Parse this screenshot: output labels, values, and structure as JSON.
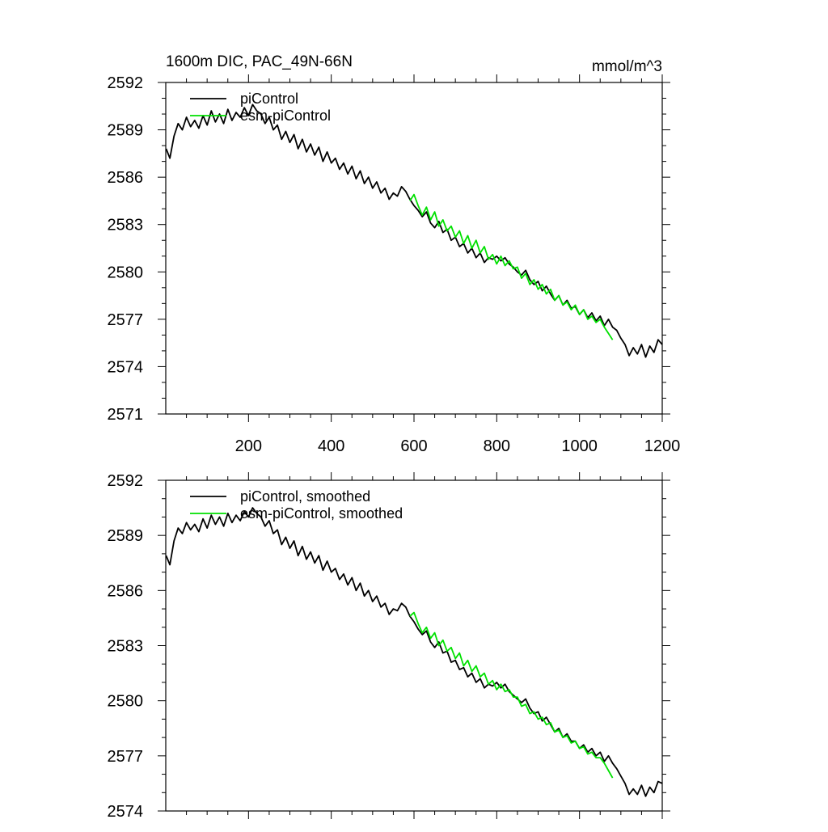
{
  "chart_data": [
    {
      "type": "line",
      "title": "1600m DIC, PAC_49N-66N",
      "units": "mmol/m^3",
      "xlim": [
        0,
        1200
      ],
      "ylim": [
        2571,
        2592
      ],
      "xticks": [
        200,
        400,
        600,
        800,
        1000,
        1200
      ],
      "xtick_labels": [
        "200",
        "400",
        "600",
        "800",
        "1000",
        "1200"
      ],
      "yticks": [
        2571,
        2574,
        2577,
        2580,
        2583,
        2586,
        2589,
        2592
      ],
      "ytick_labels": [
        "2571",
        "2574",
        "2577",
        "2580",
        "2583",
        "2586",
        "2589",
        "2592"
      ],
      "grid": false,
      "legend_position": "top-left",
      "series": [
        {
          "name": "piControl",
          "color": "#000000",
          "x": [
            1,
            10,
            20,
            30,
            40,
            50,
            60,
            70,
            80,
            90,
            100,
            110,
            120,
            130,
            140,
            150,
            160,
            170,
            180,
            190,
            200,
            210,
            220,
            230,
            240,
            250,
            260,
            270,
            280,
            290,
            300,
            310,
            320,
            330,
            340,
            350,
            360,
            370,
            380,
            390,
            400,
            410,
            420,
            430,
            440,
            450,
            460,
            470,
            480,
            490,
            500,
            510,
            520,
            530,
            540,
            550,
            560,
            570,
            580,
            590,
            600,
            610,
            620,
            630,
            640,
            650,
            660,
            670,
            680,
            690,
            700,
            710,
            720,
            730,
            740,
            750,
            760,
            770,
            780,
            790,
            800,
            810,
            820,
            830,
            840,
            850,
            860,
            870,
            880,
            890,
            900,
            910,
            920,
            930,
            940,
            950,
            960,
            970,
            980,
            990,
            1000,
            1010,
            1020,
            1030,
            1040,
            1050,
            1060,
            1070,
            1080,
            1090,
            1100,
            1110,
            1120,
            1130,
            1140,
            1150,
            1160,
            1170,
            1180,
            1190,
            1200
          ],
          "values": [
            2587.8,
            2587.2,
            2588.6,
            2589.4,
            2589.0,
            2589.8,
            2589.2,
            2589.6,
            2589.1,
            2589.9,
            2589.3,
            2590.2,
            2589.5,
            2590.0,
            2589.4,
            2590.3,
            2589.6,
            2590.1,
            2589.8,
            2590.4,
            2589.9,
            2590.6,
            2590.2,
            2590.0,
            2589.4,
            2589.8,
            2589.0,
            2589.3,
            2588.4,
            2588.9,
            2588.2,
            2588.7,
            2587.8,
            2588.4,
            2587.6,
            2588.1,
            2587.4,
            2587.9,
            2587.0,
            2587.6,
            2586.9,
            2587.2,
            2586.5,
            2586.9,
            2586.2,
            2586.7,
            2585.9,
            2586.4,
            2585.6,
            2586.0,
            2585.3,
            2585.7,
            2585.0,
            2585.3,
            2584.6,
            2585.0,
            2584.8,
            2585.4,
            2585.1,
            2584.6,
            2584.2,
            2583.9,
            2583.5,
            2583.8,
            2583.1,
            2582.8,
            2583.2,
            2582.5,
            2582.7,
            2582.0,
            2582.2,
            2581.6,
            2581.8,
            2581.2,
            2581.5,
            2580.9,
            2581.2,
            2580.6,
            2580.9,
            2580.8,
            2581.0,
            2580.7,
            2580.9,
            2580.5,
            2580.3,
            2580.0,
            2579.8,
            2580.1,
            2579.5,
            2579.2,
            2579.4,
            2578.8,
            2579.1,
            2578.6,
            2578.2,
            2578.5,
            2577.9,
            2578.2,
            2577.7,
            2577.8,
            2577.3,
            2577.6,
            2577.1,
            2577.4,
            2576.9,
            2577.2,
            2576.6,
            2577.0,
            2576.5,
            2576.3,
            2575.8,
            2575.4,
            2574.7,
            2575.2,
            2574.8,
            2575.4,
            2574.6,
            2575.3,
            2574.9,
            2575.7,
            2575.4
          ]
        },
        {
          "name": "esm-piControl",
          "color": "#00e000",
          "x": [
            590,
            600,
            610,
            620,
            630,
            640,
            650,
            660,
            670,
            680,
            690,
            700,
            710,
            720,
            730,
            740,
            750,
            760,
            770,
            780,
            790,
            800,
            810,
            820,
            830,
            840,
            850,
            860,
            870,
            880,
            890,
            900,
            910,
            920,
            930,
            940,
            950,
            960,
            970,
            980,
            990,
            1000,
            1010,
            1020,
            1030,
            1040,
            1050,
            1060,
            1070,
            1080
          ],
          "values": [
            2584.5,
            2584.9,
            2584.2,
            2583.6,
            2584.1,
            2583.3,
            2583.8,
            2582.9,
            2583.3,
            2582.6,
            2582.9,
            2582.2,
            2582.6,
            2581.8,
            2582.3,
            2581.5,
            2582.0,
            2581.2,
            2581.6,
            2580.8,
            2581.1,
            2580.5,
            2581.0,
            2580.4,
            2580.7,
            2580.2,
            2580.3,
            2579.6,
            2579.9,
            2579.2,
            2579.5,
            2578.9,
            2579.2,
            2578.6,
            2578.9,
            2578.2,
            2578.5,
            2577.9,
            2578.1,
            2577.6,
            2577.9,
            2577.3,
            2577.6,
            2577.0,
            2577.2,
            2576.8,
            2577.0,
            2576.5,
            2576.1,
            2575.7
          ]
        }
      ]
    },
    {
      "type": "line",
      "xlim": [
        0,
        1200
      ],
      "ylim": [
        2574,
        2592
      ],
      "xticks": [
        200,
        400,
        600,
        800,
        1000,
        1200
      ],
      "yticks": [
        2574,
        2577,
        2580,
        2583,
        2586,
        2589,
        2592
      ],
      "ytick_labels": [
        "2574",
        "2577",
        "2580",
        "2583",
        "2586",
        "2589",
        "2592"
      ],
      "grid": false,
      "legend_position": "top-left",
      "series": [
        {
          "name": "piControl, smoothed",
          "color": "#000000",
          "x": [
            1,
            10,
            20,
            30,
            40,
            50,
            60,
            70,
            80,
            90,
            100,
            110,
            120,
            130,
            140,
            150,
            160,
            170,
            180,
            190,
            200,
            210,
            220,
            230,
            240,
            250,
            260,
            270,
            280,
            290,
            300,
            310,
            320,
            330,
            340,
            350,
            360,
            370,
            380,
            390,
            400,
            410,
            420,
            430,
            440,
            450,
            460,
            470,
            480,
            490,
            500,
            510,
            520,
            530,
            540,
            550,
            560,
            570,
            580,
            590,
            600,
            610,
            620,
            630,
            640,
            650,
            660,
            670,
            680,
            690,
            700,
            710,
            720,
            730,
            740,
            750,
            760,
            770,
            780,
            790,
            800,
            810,
            820,
            830,
            840,
            850,
            860,
            870,
            880,
            890,
            900,
            910,
            920,
            930,
            940,
            950,
            960,
            970,
            980,
            990,
            1000,
            1010,
            1020,
            1030,
            1040,
            1050,
            1060,
            1070,
            1080,
            1090,
            1100,
            1110,
            1120,
            1130,
            1140,
            1150,
            1160,
            1170,
            1180,
            1190,
            1200
          ],
          "values": [
            2587.9,
            2587.4,
            2588.7,
            2589.4,
            2589.1,
            2589.7,
            2589.3,
            2589.6,
            2589.2,
            2589.9,
            2589.4,
            2590.1,
            2589.6,
            2590.0,
            2589.5,
            2590.2,
            2589.7,
            2590.1,
            2589.8,
            2590.3,
            2590.0,
            2590.5,
            2590.2,
            2590.0,
            2589.5,
            2589.8,
            2589.1,
            2589.3,
            2588.5,
            2588.9,
            2588.3,
            2588.7,
            2587.9,
            2588.4,
            2587.7,
            2588.1,
            2587.5,
            2587.9,
            2587.1,
            2587.6,
            2587.0,
            2587.2,
            2586.6,
            2586.9,
            2586.3,
            2586.7,
            2586.0,
            2586.4,
            2585.7,
            2586.0,
            2585.4,
            2585.7,
            2585.1,
            2585.3,
            2584.7,
            2585.0,
            2584.9,
            2585.3,
            2585.1,
            2584.6,
            2584.3,
            2583.9,
            2583.6,
            2583.8,
            2583.2,
            2582.9,
            2583.2,
            2582.6,
            2582.7,
            2582.1,
            2582.2,
            2581.7,
            2581.8,
            2581.3,
            2581.5,
            2581.0,
            2581.2,
            2580.7,
            2580.9,
            2580.8,
            2581.0,
            2580.7,
            2580.9,
            2580.5,
            2580.3,
            2580.1,
            2579.9,
            2580.1,
            2579.6,
            2579.3,
            2579.4,
            2578.9,
            2579.1,
            2578.7,
            2578.3,
            2578.5,
            2578.0,
            2578.2,
            2577.8,
            2577.8,
            2577.4,
            2577.6,
            2577.2,
            2577.4,
            2577.0,
            2577.2,
            2576.7,
            2577.0,
            2576.6,
            2576.3,
            2575.9,
            2575.5,
            2574.9,
            2575.2,
            2574.9,
            2575.4,
            2574.8,
            2575.3,
            2575.0,
            2575.6,
            2575.5
          ]
        },
        {
          "name": "esm-piControl, smoothed",
          "color": "#00e000",
          "x": [
            590,
            600,
            610,
            620,
            630,
            640,
            650,
            660,
            670,
            680,
            690,
            700,
            710,
            720,
            730,
            740,
            750,
            760,
            770,
            780,
            790,
            800,
            810,
            820,
            830,
            840,
            850,
            860,
            870,
            880,
            890,
            900,
            910,
            920,
            930,
            940,
            950,
            960,
            970,
            980,
            990,
            1000,
            1010,
            1020,
            1030,
            1040,
            1050,
            1060,
            1070,
            1080
          ],
          "values": [
            2584.6,
            2584.8,
            2584.2,
            2583.7,
            2584.0,
            2583.4,
            2583.7,
            2583.0,
            2583.3,
            2582.7,
            2582.9,
            2582.3,
            2582.6,
            2581.9,
            2582.2,
            2581.6,
            2581.9,
            2581.3,
            2581.5,
            2580.9,
            2581.1,
            2580.6,
            2580.9,
            2580.5,
            2580.6,
            2580.2,
            2580.2,
            2579.7,
            2579.8,
            2579.3,
            2579.4,
            2579.0,
            2579.1,
            2578.7,
            2578.8,
            2578.3,
            2578.4,
            2578.0,
            2578.1,
            2577.7,
            2577.8,
            2577.4,
            2577.5,
            2577.1,
            2577.2,
            2576.9,
            2576.9,
            2576.6,
            2576.2,
            2575.8
          ]
        }
      ]
    }
  ]
}
